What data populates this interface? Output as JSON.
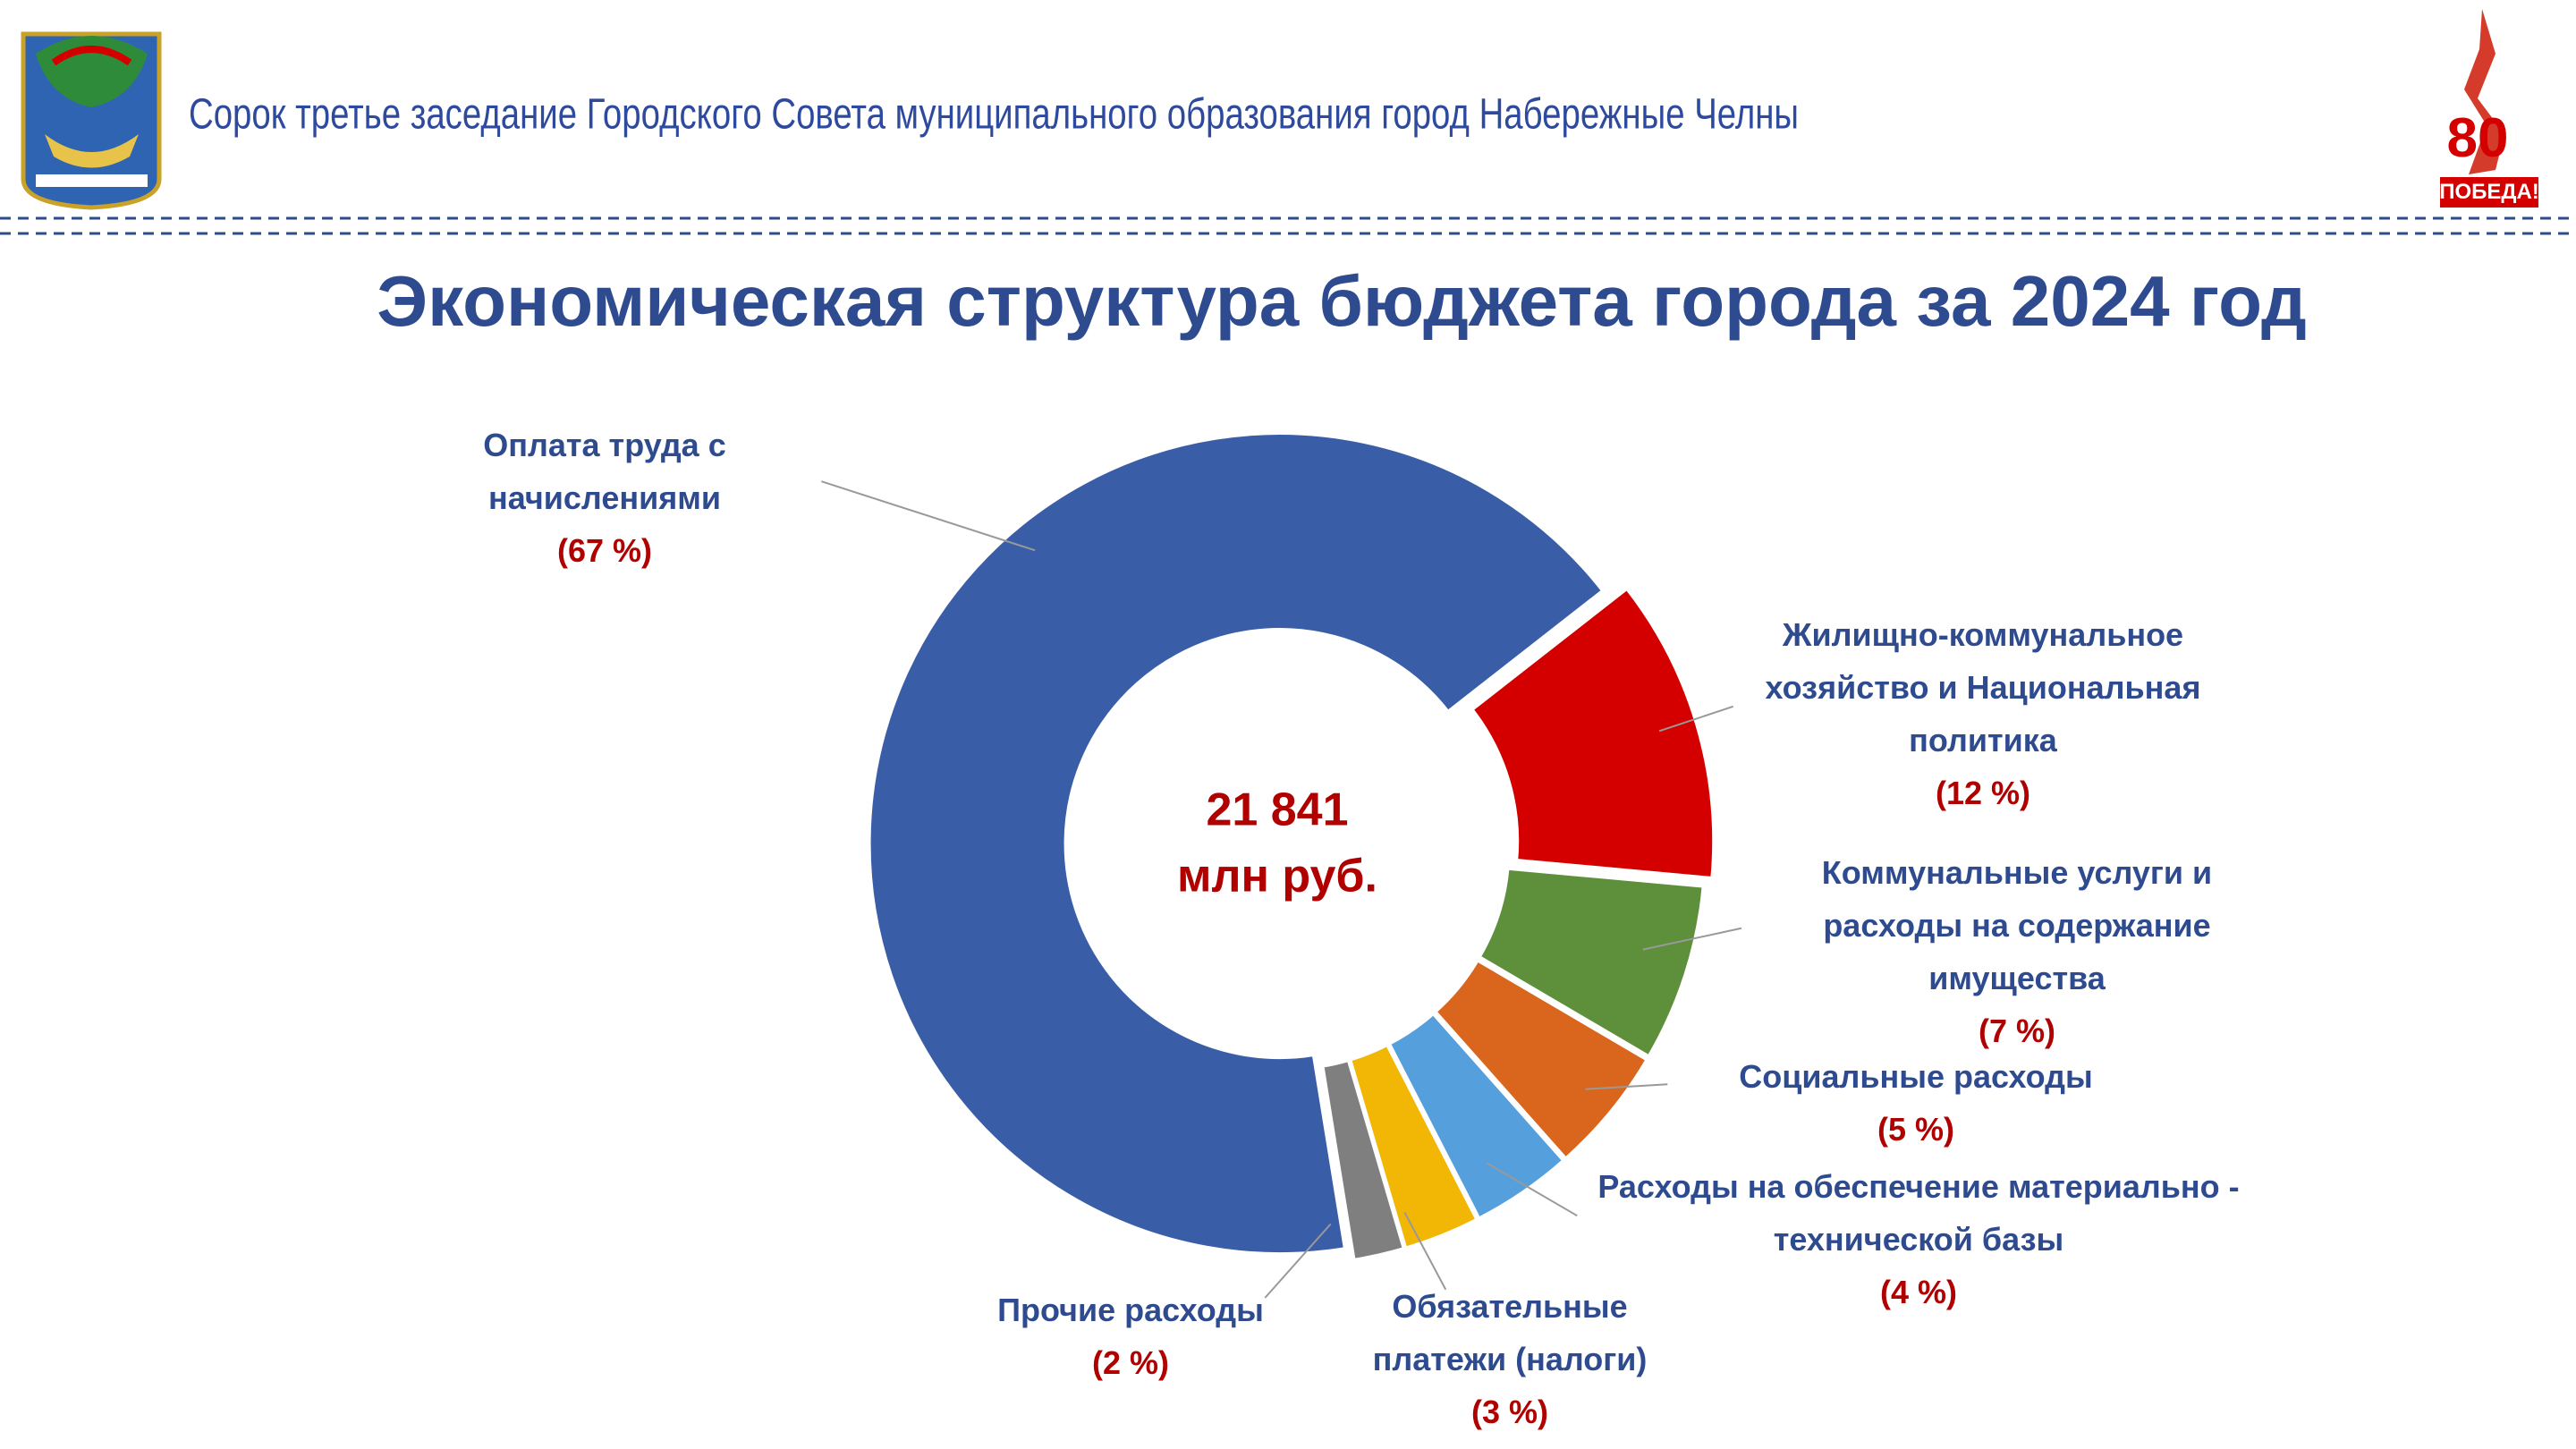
{
  "header": {
    "meeting": "Сорок третье заседание Городского Совета муниципального образования город Набережные Челны",
    "badge_number": "80",
    "badge_text": "ПОБЕДА!"
  },
  "chart_data": {
    "type": "donut",
    "title": "Экономическая структура бюджета города за 2024 год",
    "center_text": [
      "21 841",
      "млн руб."
    ],
    "categories": [
      "Оплата труда с начислениями",
      "Жилищно-коммунальное хозяйство и Национальная политика",
      "Коммунальные услуги и расходы на содержание имущества",
      "Социальные расходы",
      "Расходы на обеспечение материально - технической базы",
      "Обязательные платежи (налоги)",
      "Прочие расходы"
    ],
    "values": [
      67,
      12,
      7,
      5,
      4,
      3,
      2
    ],
    "value_labels": [
      "(67 %)",
      "(12 %)",
      "(7 %)",
      "(5 %)",
      "(4 %)",
      "(3 %)",
      "(2 %)"
    ],
    "colors": [
      "#3a5da8",
      "#d40000",
      "#5e8f3a",
      "#d9661c",
      "#55a0dc",
      "#f2b705",
      "#7f7f7f"
    ]
  }
}
